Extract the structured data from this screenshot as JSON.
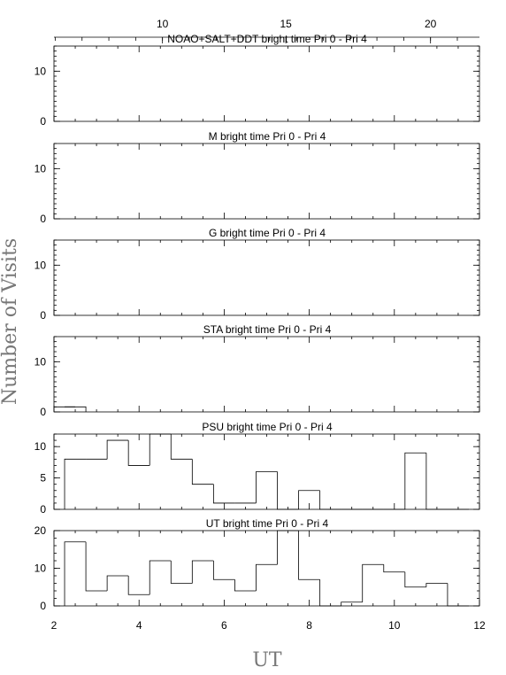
{
  "chart_data": {
    "type": "histogram",
    "xlabel": "UT",
    "ylabel": "Number of Visits",
    "xlim": [
      2,
      12
    ],
    "bottom_x_ticks": [
      "2",
      "4",
      "6",
      "8",
      "10",
      "12"
    ],
    "top_axis": {
      "ticks": [
        "10",
        "15",
        "20"
      ],
      "tick_positions_in_ut": [
        4.55,
        7.45,
        10.85
      ]
    },
    "bin_width": 0.5,
    "panels": [
      {
        "label": "NOAO+SALT+DDT",
        "subtitle": "bright time Pri 0 - Pri 4",
        "ylim": [
          0,
          15
        ],
        "yticks": [
          "0",
          "10"
        ],
        "ytick_values": [
          0,
          10
        ],
        "bin_starts": [],
        "values": []
      },
      {
        "label": "M",
        "subtitle": "bright time Pri 0 - Pri 4",
        "ylim": [
          0,
          15
        ],
        "yticks": [
          "0",
          "10"
        ],
        "ytick_values": [
          0,
          10
        ],
        "bin_starts": [],
        "values": []
      },
      {
        "label": "G",
        "subtitle": "bright time Pri 0 - Pri 4",
        "ylim": [
          0,
          15
        ],
        "yticks": [
          "0",
          "10"
        ],
        "ytick_values": [
          0,
          10
        ],
        "bin_starts": [],
        "values": []
      },
      {
        "label": "STA",
        "subtitle": "bright time Pri 0 - Pri 4",
        "ylim": [
          0,
          15
        ],
        "yticks": [
          "0",
          "10"
        ],
        "ytick_values": [
          0,
          10
        ],
        "bin_starts": [
          2.0,
          2.25
        ],
        "values": [
          1,
          1
        ]
      },
      {
        "label": "PSU",
        "subtitle": "bright time Pri 0 - Pri 4",
        "ylim": [
          0,
          12
        ],
        "yticks": [
          "0",
          "5",
          "10"
        ],
        "ytick_values": [
          0,
          5,
          10
        ],
        "bin_starts": [
          2.25,
          2.75,
          3.25,
          3.75,
          4.25,
          4.75,
          5.25,
          5.75,
          6.25,
          6.75,
          7.25,
          7.75,
          8.25,
          8.75,
          9.25,
          9.75,
          10.25,
          10.75,
          11.25
        ],
        "values": [
          8,
          8,
          11,
          7,
          12,
          8,
          4,
          1,
          1,
          6,
          0,
          3,
          0,
          0,
          0,
          0,
          9,
          0,
          0
        ]
      },
      {
        "label": "UT",
        "subtitle": "bright time Pri 0 - Pri 4",
        "ylim": [
          0,
          20
        ],
        "yticks": [
          "0",
          "10",
          "20"
        ],
        "ytick_values": [
          0,
          10,
          20
        ],
        "bin_starts": [
          2.25,
          2.75,
          3.25,
          3.75,
          4.25,
          4.75,
          5.25,
          5.75,
          6.25,
          6.75,
          7.25,
          7.75,
          8.25,
          8.75,
          9.25,
          9.75,
          10.25,
          10.75,
          11.25
        ],
        "values": [
          17,
          4,
          8,
          3,
          12,
          6,
          12,
          7,
          4,
          11,
          20,
          7,
          0,
          1,
          11,
          9,
          5,
          6,
          0
        ]
      }
    ]
  }
}
